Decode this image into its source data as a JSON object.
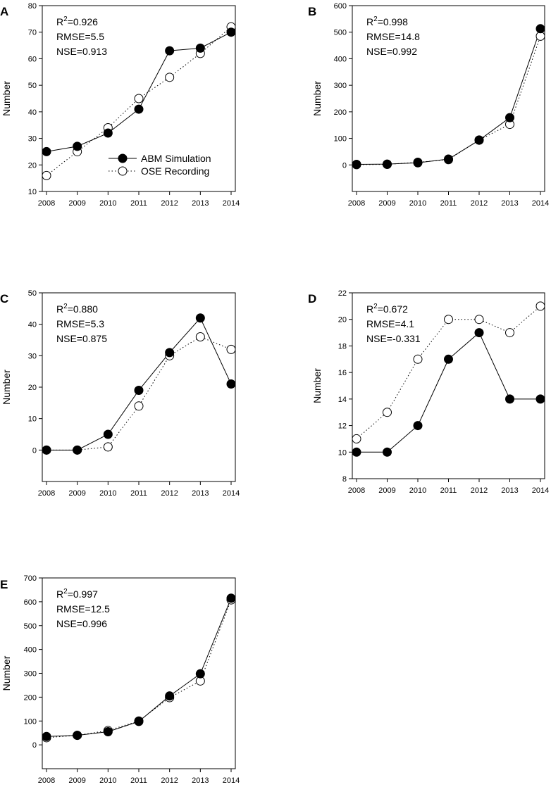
{
  "figure": {
    "legend": {
      "abm_label": "ABM Simulation",
      "ose_label": "OSE Recording"
    }
  },
  "chart_data": [
    {
      "panel": "A",
      "type": "line",
      "title": "",
      "xlabel": "",
      "ylabel": "Number",
      "categories": [
        "2008",
        "2009",
        "2010",
        "2011",
        "2012",
        "2013",
        "2014"
      ],
      "ylim": [
        10,
        80
      ],
      "yticks": [
        10,
        20,
        30,
        40,
        50,
        60,
        70,
        80
      ],
      "series": [
        {
          "name": "ABM Simulation",
          "marker": "filled",
          "line": "solid",
          "values": [
            25,
            27,
            32,
            41,
            63,
            64,
            70
          ]
        },
        {
          "name": "OSE Recording",
          "marker": "open",
          "line": "dotted",
          "values": [
            16,
            25,
            34,
            45,
            53,
            62,
            72
          ]
        }
      ],
      "stats": {
        "r2_value": "=0.926",
        "rmse": "RMSE=5.5",
        "nse": "NSE=0.913"
      },
      "legend": "lower-right"
    },
    {
      "panel": "B",
      "type": "line",
      "title": "",
      "xlabel": "",
      "ylabel": "Number",
      "categories": [
        "2008",
        "2009",
        "2010",
        "2011",
        "2012",
        "2013",
        "2014"
      ],
      "ylim": [
        -100,
        600
      ],
      "yticks": [
        0,
        100,
        200,
        300,
        400,
        500,
        600
      ],
      "series": [
        {
          "name": "ABM Simulation",
          "marker": "filled",
          "line": "solid",
          "values": [
            2,
            3,
            8,
            22,
            93,
            178,
            513
          ]
        },
        {
          "name": "OSE Recording",
          "marker": "open",
          "line": "dotted",
          "values": [
            1,
            2,
            10,
            20,
            94,
            153,
            485
          ]
        }
      ],
      "stats": {
        "r2_value": "=0.998",
        "rmse": "RMSE=14.8",
        "nse": "NSE=0.992"
      }
    },
    {
      "panel": "C",
      "type": "line",
      "title": "",
      "xlabel": "",
      "ylabel": "Number",
      "categories": [
        "2008",
        "2009",
        "2010",
        "2011",
        "2012",
        "2013",
        "2014"
      ],
      "ylim": [
        -10,
        50
      ],
      "yticks": [
        0,
        10,
        20,
        30,
        40,
        50
      ],
      "series": [
        {
          "name": "ABM Simulation",
          "marker": "filled",
          "line": "solid",
          "values": [
            0,
            0,
            5,
            19,
            31,
            42,
            21
          ]
        },
        {
          "name": "OSE Recording",
          "marker": "open",
          "line": "dotted",
          "values": [
            0,
            0,
            1,
            14,
            30,
            36,
            32
          ]
        }
      ],
      "stats": {
        "r2_value": "=0.880",
        "rmse": "RMSE=5.3",
        "nse": "NSE=0.875"
      }
    },
    {
      "panel": "D",
      "type": "line",
      "title": "",
      "xlabel": "",
      "ylabel": "Number",
      "categories": [
        "2008",
        "2009",
        "2010",
        "2011",
        "2012",
        "2013",
        "2014"
      ],
      "ylim": [
        8,
        22
      ],
      "yticks": [
        8,
        10,
        12,
        14,
        16,
        18,
        20,
        22
      ],
      "series": [
        {
          "name": "ABM Simulation",
          "marker": "filled",
          "line": "solid",
          "values": [
            10,
            10,
            12,
            17,
            19,
            14,
            14
          ]
        },
        {
          "name": "OSE Recording",
          "marker": "open",
          "line": "dotted",
          "values": [
            11,
            13,
            17,
            20,
            20,
            19,
            21
          ]
        }
      ],
      "stats": {
        "r2_value": "=0.672",
        "rmse": "RMSE=4.1",
        "nse": "NSE=-0.331"
      }
    },
    {
      "panel": "E",
      "type": "line",
      "title": "",
      "xlabel": "",
      "ylabel": "Number",
      "categories": [
        "2008",
        "2009",
        "2010",
        "2011",
        "2012",
        "2013",
        "2014"
      ],
      "ylim": [
        -100,
        700
      ],
      "yticks": [
        0,
        100,
        200,
        300,
        400,
        500,
        600,
        700
      ],
      "series": [
        {
          "name": "ABM Simulation",
          "marker": "filled",
          "line": "solid",
          "values": [
            35,
            40,
            55,
            98,
            205,
            298,
            615
          ]
        },
        {
          "name": "OSE Recording",
          "marker": "open",
          "line": "dotted",
          "values": [
            30,
            40,
            60,
            100,
            198,
            268,
            608
          ]
        }
      ],
      "stats": {
        "r2_value": "=0.997",
        "rmse": "RMSE=12.5",
        "nse": "NSE=0.996"
      }
    }
  ]
}
